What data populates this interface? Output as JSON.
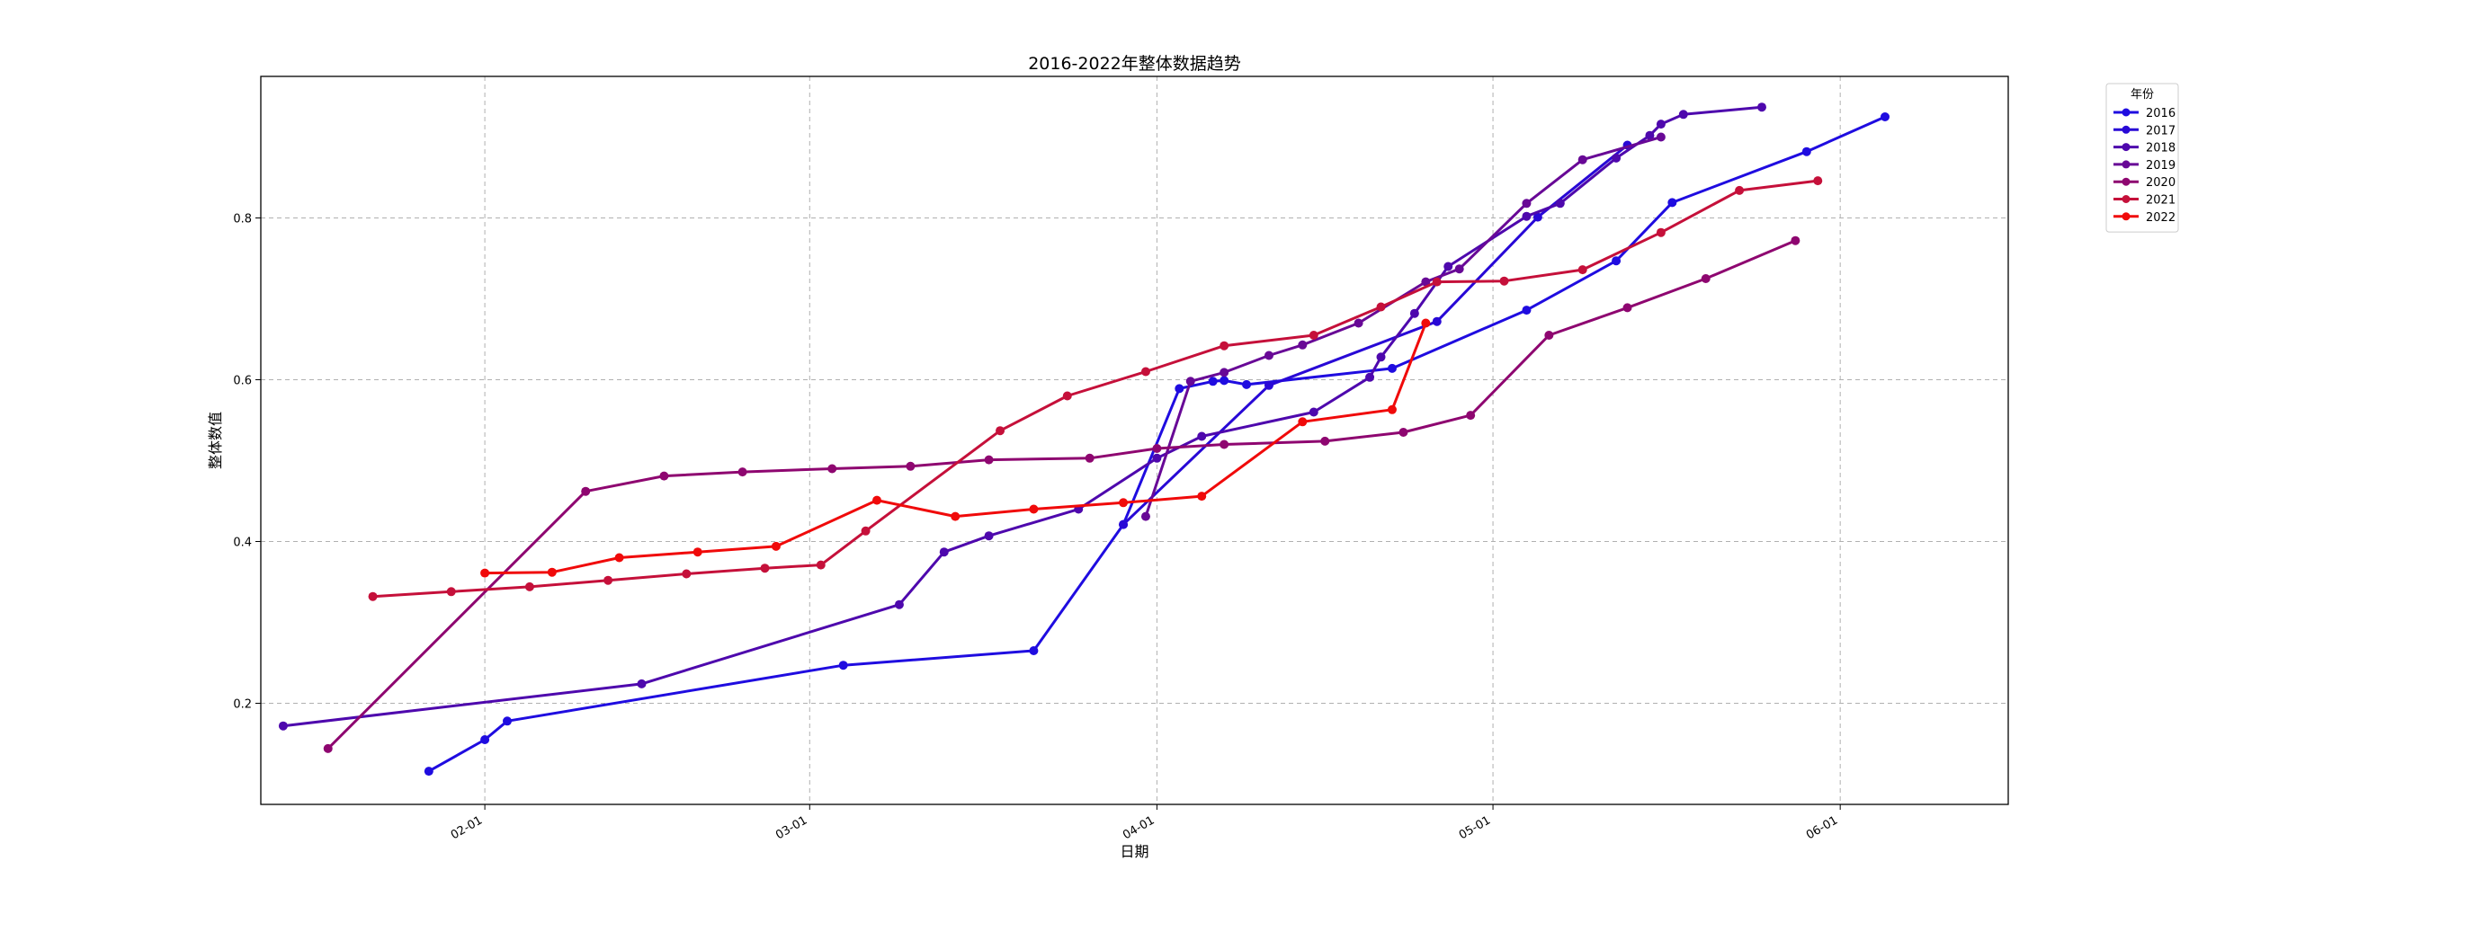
{
  "chart_data": {
    "type": "line",
    "title": "2016-2022年整体数据趋势",
    "xlabel": "日期",
    "ylabel": "整体数值",
    "x_axis": "date (month-day, shared across years)",
    "xlim": [
      "01-12",
      "06-16"
    ],
    "ylim": [
      0.075,
      0.975
    ],
    "x_ticks": [
      "02-01",
      "03-01",
      "04-01",
      "05-01",
      "06-01"
    ],
    "y_ticks": [
      0.2,
      0.4,
      0.6,
      0.8
    ],
    "y_tick_labels": [
      "0.2",
      "0.4",
      "0.6",
      "0.8"
    ],
    "grid": true,
    "legend": {
      "title": "年份",
      "placement": "outside top-right"
    },
    "series": [
      {
        "name": "2016",
        "color": "#1f0ce0",
        "x": [
          "01-27",
          "02-01",
          "02-03",
          "03-04",
          "03-21",
          "03-29",
          "04-03",
          "04-06",
          "04-07",
          "04-09",
          "04-22",
          "05-04",
          "05-12",
          "05-17",
          "05-29",
          "06-05"
        ],
        "y": [
          0.116,
          0.155,
          0.178,
          0.247,
          0.265,
          0.421,
          0.589,
          0.598,
          0.599,
          0.594,
          0.614,
          0.686,
          0.747,
          0.819,
          0.882,
          0.925
        ]
      },
      {
        "name": "2017",
        "color": "#2808d6",
        "x": [
          "03-29",
          "04-11",
          "04-26",
          "05-05",
          "05-13"
        ],
        "y": [
          0.421,
          0.593,
          0.672,
          0.801,
          0.89
        ]
      },
      {
        "name": "2018",
        "color": "#4e08ad",
        "x": [
          "01-14",
          "02-15",
          "03-09",
          "03-13",
          "03-17",
          "03-25",
          "04-01",
          "04-05",
          "04-15",
          "04-20",
          "04-21",
          "04-24",
          "04-27",
          "05-04",
          "05-07",
          "05-12",
          "05-15",
          "05-16",
          "05-18",
          "05-25"
        ],
        "y": [
          0.172,
          0.224,
          0.322,
          0.387,
          0.407,
          0.44,
          0.503,
          0.53,
          0.56,
          0.603,
          0.628,
          0.682,
          0.74,
          0.802,
          0.818,
          0.874,
          0.902,
          0.916,
          0.928,
          0.937
        ]
      },
      {
        "name": "2019",
        "color": "#680896",
        "x": [
          "03-31",
          "04-04",
          "04-07",
          "04-11",
          "04-14",
          "04-19",
          "04-25",
          "04-28",
          "05-04",
          "05-09",
          "05-16"
        ],
        "y": [
          0.431,
          0.598,
          0.609,
          0.63,
          0.643,
          0.67,
          0.721,
          0.737,
          0.818,
          0.872,
          0.9
        ]
      },
      {
        "name": "2020",
        "color": "#8e0670",
        "x": [
          "01-18",
          "02-10",
          "02-17",
          "02-24",
          "03-03",
          "03-10",
          "03-17",
          "03-26",
          "04-01",
          "04-07",
          "04-16",
          "04-23",
          "04-29",
          "05-06",
          "05-13",
          "05-20",
          "05-28"
        ],
        "y": [
          0.144,
          0.462,
          0.481,
          0.486,
          0.49,
          0.493,
          0.501,
          0.503,
          0.515,
          0.52,
          0.524,
          0.535,
          0.556,
          0.655,
          0.689,
          0.725,
          0.772
        ]
      },
      {
        "name": "2021",
        "color": "#c5103a",
        "x": [
          "01-22",
          "01-29",
          "02-05",
          "02-12",
          "02-19",
          "02-26",
          "03-02",
          "03-06",
          "03-18",
          "03-24",
          "03-31",
          "04-07",
          "04-15",
          "04-21",
          "04-26",
          "05-02",
          "05-09",
          "05-16",
          "05-23",
          "05-30"
        ],
        "y": [
          0.332,
          0.338,
          0.344,
          0.352,
          0.36,
          0.367,
          0.371,
          0.413,
          0.537,
          0.58,
          0.61,
          0.642,
          0.655,
          0.69,
          0.721,
          0.722,
          0.736,
          0.782,
          0.834,
          0.846
        ]
      },
      {
        "name": "2022",
        "color": "#f00a0a",
        "x": [
          "02-01",
          "02-07",
          "02-13",
          "02-20",
          "02-27",
          "03-07",
          "03-14",
          "03-21",
          "03-29",
          "04-05",
          "04-14",
          "04-22",
          "04-25"
        ],
        "y": [
          0.361,
          0.362,
          0.38,
          0.387,
          0.394,
          0.451,
          0.431,
          0.44,
          0.448,
          0.456,
          0.548,
          0.563,
          0.67
        ]
      }
    ]
  }
}
